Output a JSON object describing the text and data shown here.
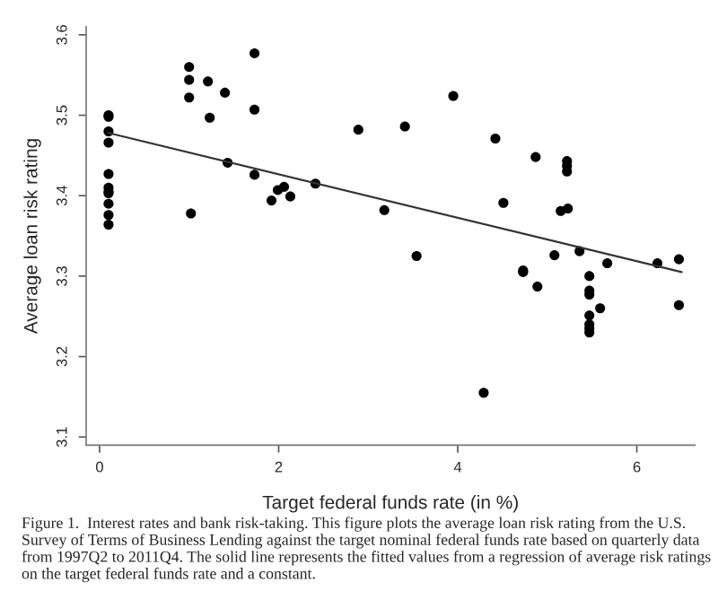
{
  "chart_data": {
    "type": "scatter",
    "xlabel": "Target federal funds rate (in %)",
    "ylabel": "Average loan risk rating",
    "annotations": [
      "Figure 1.  Interest rates and bank risk-taking. This figure plots the average loan risk rating from the U.S. Survey of Terms of Business Lending against the target nominal federal funds rate based on quarterly data from 1997Q2 to 2011Q4. The solid line represents the fitted values from a regression of average risk ratings on the target federal funds rate and a constant."
    ],
    "xlim": [
      -0.15,
      6.65
    ],
    "ylim": [
      3.09,
      3.61
    ],
    "xticks": [
      0,
      2,
      4,
      6
    ],
    "yticks": [
      3.1,
      3.2,
      3.3,
      3.4,
      3.5,
      3.6
    ],
    "grid": false,
    "legend": false,
    "series": [
      {
        "color": "#000000",
        "marker": "circle",
        "x": [
          0.1,
          0.1,
          0.1,
          0.1,
          0.1,
          0.1,
          0.1,
          0.1,
          0.1,
          0.1,
          0.1,
          1.0,
          1.0,
          1.0,
          1.02,
          1.21,
          1.23,
          1.4,
          1.43,
          1.73,
          1.73,
          1.73,
          1.92,
          1.99,
          2.06,
          2.13,
          2.41,
          2.89,
          3.41,
          3.95,
          3.18,
          3.54,
          4.42,
          4.29,
          4.51,
          4.87,
          4.73,
          4.73,
          4.89,
          5.08,
          5.22,
          5.22,
          5.22,
          5.15,
          5.23,
          5.36,
          5.47,
          5.47,
          5.47,
          5.47,
          5.47,
          5.47,
          5.47,
          5.59,
          5.67,
          6.23,
          6.47,
          6.47
        ],
        "values": [
          3.5,
          3.498,
          3.48,
          3.466,
          3.427,
          3.41,
          3.405,
          3.403,
          3.39,
          3.376,
          3.364,
          3.56,
          3.544,
          3.522,
          3.378,
          3.542,
          3.497,
          3.528,
          3.441,
          3.577,
          3.507,
          3.426,
          3.394,
          3.407,
          3.411,
          3.399,
          3.415,
          3.482,
          3.486,
          3.524,
          3.382,
          3.325,
          3.471,
          3.155,
          3.391,
          3.448,
          3.307,
          3.305,
          3.287,
          3.326,
          3.443,
          3.437,
          3.43,
          3.381,
          3.384,
          3.331,
          3.3,
          3.282,
          3.277,
          3.251,
          3.24,
          3.235,
          3.23,
          3.26,
          3.316,
          3.316,
          3.321,
          3.264
        ]
      },
      {
        "type": "line",
        "color": "#333333",
        "line_style": "solid",
        "marker": "none",
        "x": [
          0.1,
          6.5
        ],
        "values": [
          3.478,
          3.305
        ]
      }
    ]
  }
}
